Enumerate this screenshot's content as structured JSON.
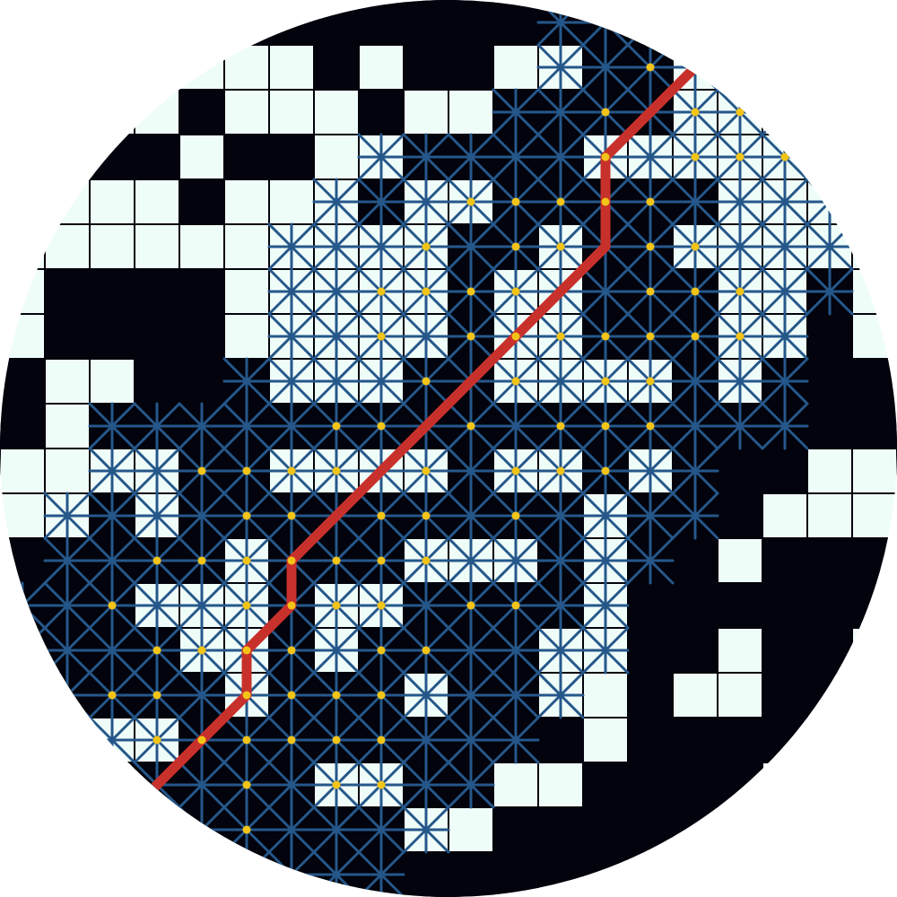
{
  "colors": {
    "page": "#ffffff",
    "free_cell": "#effdf9",
    "wall_cell": "#02030c",
    "grid_line": "#02030c",
    "search_edge": "#25578a",
    "node": "#f3c418",
    "path": "#c8312b"
  },
  "grid": {
    "cols": 20,
    "rows": 20,
    "walls": [
      [
        2,
        0
      ],
      [
        3,
        0
      ],
      [
        4,
        0
      ],
      [
        5,
        0
      ],
      [
        6,
        0
      ],
      [
        7,
        0
      ],
      [
        8,
        0
      ],
      [
        9,
        0
      ],
      [
        10,
        0
      ],
      [
        11,
        0
      ],
      [
        12,
        0
      ],
      [
        13,
        0
      ],
      [
        14,
        0
      ],
      [
        15,
        0
      ],
      [
        16,
        0
      ],
      [
        17,
        0
      ],
      [
        7,
        1
      ],
      [
        9,
        1
      ],
      [
        10,
        1
      ],
      [
        13,
        1
      ],
      [
        14,
        1
      ],
      [
        4,
        2
      ],
      [
        8,
        2
      ],
      [
        11,
        2
      ],
      [
        12,
        2
      ],
      [
        13,
        2
      ],
      [
        14,
        2
      ],
      [
        2,
        3
      ],
      [
        3,
        3
      ],
      [
        5,
        3
      ],
      [
        6,
        3
      ],
      [
        9,
        3
      ],
      [
        10,
        3
      ],
      [
        11,
        3
      ],
      [
        12,
        3
      ],
      [
        4,
        4
      ],
      [
        8,
        4
      ],
      [
        11,
        4
      ],
      [
        12,
        4
      ],
      [
        13,
        4
      ],
      [
        14,
        4
      ],
      [
        15,
        4
      ],
      [
        10,
        5
      ],
      [
        11,
        5
      ],
      [
        13,
        5
      ],
      [
        14,
        5
      ],
      [
        1,
        6
      ],
      [
        2,
        6
      ],
      [
        3,
        6
      ],
      [
        4,
        6
      ],
      [
        10,
        6
      ],
      [
        13,
        6
      ],
      [
        14,
        6
      ],
      [
        15,
        6
      ],
      [
        18,
        6
      ],
      [
        1,
        7
      ],
      [
        2,
        7
      ],
      [
        3,
        7
      ],
      [
        4,
        7
      ],
      [
        10,
        7
      ],
      [
        13,
        7
      ],
      [
        14,
        7
      ],
      [
        15,
        7
      ],
      [
        18,
        7
      ],
      [
        0,
        8
      ],
      [
        3,
        8
      ],
      [
        4,
        8
      ],
      [
        5,
        8
      ],
      [
        9,
        8
      ],
      [
        10,
        8
      ],
      [
        15,
        8
      ],
      [
        17,
        8
      ],
      [
        18,
        8
      ],
      [
        19,
        8
      ],
      [
        0,
        9
      ],
      [
        2,
        9
      ],
      [
        3,
        9
      ],
      [
        4,
        9
      ],
      [
        5,
        9
      ],
      [
        6,
        9
      ],
      [
        7,
        9
      ],
      [
        8,
        9
      ],
      [
        9,
        9
      ],
      [
        10,
        9
      ],
      [
        11,
        9
      ],
      [
        12,
        9
      ],
      [
        13,
        9
      ],
      [
        14,
        9
      ],
      [
        15,
        9
      ],
      [
        16,
        9
      ],
      [
        17,
        9
      ],
      [
        18,
        9
      ],
      [
        19,
        9
      ],
      [
        4,
        10
      ],
      [
        5,
        10
      ],
      [
        10,
        10
      ],
      [
        13,
        10
      ],
      [
        15,
        10
      ],
      [
        16,
        10
      ],
      [
        17,
        10
      ],
      [
        2,
        11
      ],
      [
        4,
        11
      ],
      [
        5,
        11
      ],
      [
        6,
        11
      ],
      [
        7,
        11
      ],
      [
        8,
        11
      ],
      [
        9,
        11
      ],
      [
        10,
        11
      ],
      [
        11,
        11
      ],
      [
        12,
        11
      ],
      [
        14,
        11
      ],
      [
        15,
        11
      ],
      [
        16,
        11
      ],
      [
        0,
        12
      ],
      [
        1,
        12
      ],
      [
        2,
        12
      ],
      [
        3,
        12
      ],
      [
        4,
        12
      ],
      [
        6,
        12
      ],
      [
        7,
        12
      ],
      [
        8,
        12
      ],
      [
        12,
        12
      ],
      [
        14,
        12
      ],
      [
        15,
        12
      ],
      [
        17,
        12
      ],
      [
        18,
        12
      ],
      [
        19,
        12
      ],
      [
        0,
        13
      ],
      [
        1,
        13
      ],
      [
        2,
        13
      ],
      [
        6,
        13
      ],
      [
        9,
        13
      ],
      [
        10,
        13
      ],
      [
        11,
        13
      ],
      [
        12,
        13
      ],
      [
        14,
        13
      ],
      [
        15,
        13
      ],
      [
        16,
        13
      ],
      [
        17,
        13
      ],
      [
        18,
        13
      ],
      [
        19,
        13
      ],
      [
        0,
        14
      ],
      [
        1,
        14
      ],
      [
        2,
        14
      ],
      [
        3,
        14
      ],
      [
        6,
        14
      ],
      [
        8,
        14
      ],
      [
        9,
        14
      ],
      [
        10,
        14
      ],
      [
        11,
        14
      ],
      [
        14,
        14
      ],
      [
        15,
        14
      ],
      [
        17,
        14
      ],
      [
        18,
        14
      ],
      [
        0,
        15
      ],
      [
        1,
        15
      ],
      [
        2,
        15
      ],
      [
        3,
        15
      ],
      [
        4,
        15
      ],
      [
        6,
        15
      ],
      [
        7,
        15
      ],
      [
        8,
        15
      ],
      [
        10,
        15
      ],
      [
        11,
        15
      ],
      [
        14,
        15
      ],
      [
        17,
        15
      ],
      [
        18,
        15
      ],
      [
        4,
        16
      ],
      [
        5,
        16
      ],
      [
        6,
        16
      ],
      [
        7,
        16
      ],
      [
        8,
        16
      ],
      [
        9,
        16
      ],
      [
        10,
        16
      ],
      [
        11,
        16
      ],
      [
        12,
        16
      ],
      [
        14,
        16
      ],
      [
        15,
        16
      ],
      [
        16,
        16
      ],
      [
        17,
        16
      ],
      [
        18,
        16
      ],
      [
        1,
        17
      ],
      [
        2,
        17
      ],
      [
        3,
        17
      ],
      [
        4,
        17
      ],
      [
        5,
        17
      ],
      [
        6,
        17
      ],
      [
        9,
        17
      ],
      [
        10,
        17
      ],
      [
        13,
        17
      ],
      [
        14,
        17
      ],
      [
        15,
        17
      ],
      [
        16,
        17
      ],
      [
        2,
        18
      ],
      [
        3,
        18
      ],
      [
        4,
        18
      ],
      [
        5,
        18
      ],
      [
        6,
        18
      ],
      [
        7,
        18
      ],
      [
        8,
        18
      ],
      [
        11,
        18
      ],
      [
        12,
        18
      ],
      [
        13,
        18
      ],
      [
        14,
        18
      ],
      [
        15,
        18
      ],
      [
        5,
        19
      ],
      [
        6,
        19
      ],
      [
        7,
        19
      ],
      [
        8,
        19
      ],
      [
        9,
        19
      ],
      [
        10,
        19
      ],
      [
        11,
        19
      ],
      [
        12,
        19
      ],
      [
        13,
        19
      ],
      [
        14,
        19
      ],
      [
        15,
        19
      ]
    ]
  },
  "search": {
    "explored_rows": [
      {
        "row": 0,
        "from": 12,
        "to": 14
      },
      {
        "row": 1,
        "from": 12,
        "to": 16
      },
      {
        "row": 2,
        "from": 11,
        "to": 17
      },
      {
        "row": 3,
        "from": 8,
        "to": 17
      },
      {
        "row": 4,
        "from": 7,
        "to": 18
      },
      {
        "row": 5,
        "from": 6,
        "to": 18
      },
      {
        "row": 6,
        "from": 6,
        "to": 18
      },
      {
        "row": 7,
        "from": 6,
        "to": 17
      },
      {
        "row": 8,
        "from": 5,
        "to": 17
      },
      {
        "row": 9,
        "from": 2,
        "to": 17
      },
      {
        "row": 10,
        "from": 2,
        "to": 15
      },
      {
        "row": 11,
        "from": 1,
        "to": 15
      },
      {
        "row": 12,
        "from": 1,
        "to": 14
      },
      {
        "row": 13,
        "from": 0,
        "to": 13
      },
      {
        "row": 14,
        "from": 0,
        "to": 13
      },
      {
        "row": 15,
        "from": 1,
        "to": 12
      },
      {
        "row": 16,
        "from": 2,
        "to": 11
      },
      {
        "row": 17,
        "from": 3,
        "to": 10
      },
      {
        "row": 18,
        "from": 4,
        "to": 9
      },
      {
        "row": 19,
        "from": 5,
        "to": 8
      }
    ],
    "nodes": [
      [
        14,
        1
      ],
      [
        15,
        1
      ],
      [
        13,
        2
      ],
      [
        15,
        2
      ],
      [
        16,
        2
      ],
      [
        17,
        2
      ],
      [
        13,
        3
      ],
      [
        15,
        3
      ],
      [
        16,
        3
      ],
      [
        17,
        3
      ],
      [
        10,
        4
      ],
      [
        11,
        4
      ],
      [
        12,
        4
      ],
      [
        13,
        4
      ],
      [
        14,
        4
      ],
      [
        9,
        5
      ],
      [
        11,
        5
      ],
      [
        12,
        5
      ],
      [
        14,
        5
      ],
      [
        15,
        5
      ],
      [
        8,
        6
      ],
      [
        9,
        6
      ],
      [
        10,
        6
      ],
      [
        11,
        6
      ],
      [
        14,
        6
      ],
      [
        15,
        6
      ],
      [
        16,
        6
      ],
      [
        8,
        7
      ],
      [
        10,
        7
      ],
      [
        11,
        7
      ],
      [
        12,
        7
      ],
      [
        13,
        7
      ],
      [
        14,
        7
      ],
      [
        15,
        7
      ],
      [
        16,
        7
      ],
      [
        9,
        8
      ],
      [
        11,
        8
      ],
      [
        13,
        8
      ],
      [
        14,
        8
      ],
      [
        7,
        9
      ],
      [
        8,
        9
      ],
      [
        10,
        9
      ],
      [
        12,
        9
      ],
      [
        13,
        9
      ],
      [
        14,
        9
      ],
      [
        4,
        10
      ],
      [
        5,
        10
      ],
      [
        6,
        10
      ],
      [
        7,
        10
      ],
      [
        9,
        10
      ],
      [
        11,
        10
      ],
      [
        12,
        10
      ],
      [
        13,
        10
      ],
      [
        5,
        11
      ],
      [
        6,
        11
      ],
      [
        8,
        11
      ],
      [
        9,
        11
      ],
      [
        11,
        11
      ],
      [
        3,
        12
      ],
      [
        4,
        12
      ],
      [
        5,
        12
      ],
      [
        6,
        12
      ],
      [
        7,
        12
      ],
      [
        8,
        12
      ],
      [
        9,
        12
      ],
      [
        2,
        13
      ],
      [
        5,
        13
      ],
      [
        6,
        13
      ],
      [
        7,
        13
      ],
      [
        8,
        13
      ],
      [
        10,
        13
      ],
      [
        11,
        13
      ],
      [
        3,
        14
      ],
      [
        4,
        14
      ],
      [
        5,
        14
      ],
      [
        6,
        14
      ],
      [
        8,
        14
      ],
      [
        9,
        14
      ],
      [
        2,
        15
      ],
      [
        3,
        15
      ],
      [
        5,
        15
      ],
      [
        6,
        15
      ],
      [
        7,
        15
      ],
      [
        8,
        15
      ],
      [
        3,
        16
      ],
      [
        4,
        16
      ],
      [
        5,
        16
      ],
      [
        6,
        16
      ],
      [
        7,
        16
      ],
      [
        8,
        16
      ],
      [
        5,
        17
      ],
      [
        7,
        17
      ],
      [
        8,
        17
      ],
      [
        5,
        18
      ]
    ]
  },
  "path": {
    "points": [
      [
        15,
        1
      ],
      [
        14,
        2
      ],
      [
        13,
        3
      ],
      [
        13,
        4
      ],
      [
        13,
        5
      ],
      [
        12,
        6
      ],
      [
        11,
        7
      ],
      [
        10,
        8
      ],
      [
        9,
        9
      ],
      [
        8,
        10
      ],
      [
        7,
        11
      ],
      [
        6,
        12
      ],
      [
        6,
        13
      ],
      [
        5,
        14
      ],
      [
        5,
        15
      ],
      [
        4,
        16
      ],
      [
        3,
        17
      ]
    ],
    "exit_start": [
      15.7,
      0.55
    ],
    "exit_end": [
      2.95,
      17.05
    ]
  }
}
